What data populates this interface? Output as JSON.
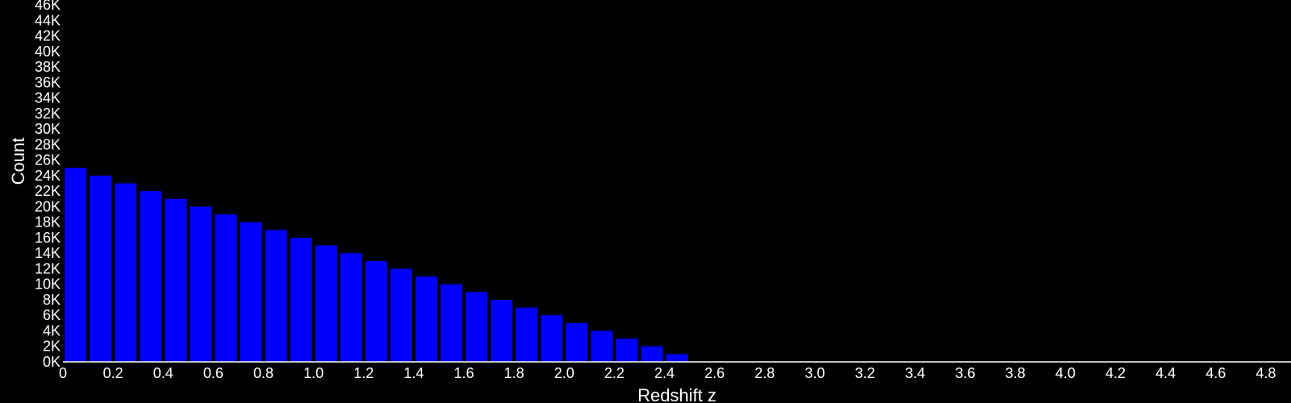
{
  "chart_data": {
    "type": "bar",
    "xlabel": "Redshift z",
    "ylabel": "Count",
    "xlim": [
      0,
      4.9
    ],
    "ylim": [
      0,
      46000
    ],
    "x_ticks": [
      "0",
      "0.2",
      "0.4",
      "0.6",
      "0.8",
      "1.0",
      "1.2",
      "1.4",
      "1.6",
      "1.8",
      "2.0",
      "2.2",
      "2.4",
      "2.6",
      "2.8",
      "3.0",
      "3.2",
      "3.4",
      "3.6",
      "3.8",
      "4.0",
      "4.2",
      "4.4",
      "4.6",
      "4.8"
    ],
    "y_ticks": [
      "0K",
      "2K",
      "4K",
      "6K",
      "8K",
      "10K",
      "12K",
      "14K",
      "16K",
      "18K",
      "20K",
      "22K",
      "24K",
      "26K",
      "28K",
      "30K",
      "32K",
      "34K",
      "36K",
      "38K",
      "40K",
      "42K",
      "44K",
      "46K"
    ],
    "bin_width": 0.1,
    "bin_starts": [
      0,
      0.1,
      0.2,
      0.3,
      0.4,
      0.5,
      0.6,
      0.7,
      0.8,
      0.9,
      1.0,
      1.1,
      1.2,
      1.3,
      1.4,
      1.5,
      1.6,
      1.7,
      1.8,
      1.9,
      2.0,
      2.1,
      2.2,
      2.3,
      2.4
    ],
    "values": [
      25000,
      24000,
      23000,
      22000,
      21000,
      20000,
      19000,
      18000,
      17000,
      16000,
      15000,
      14000,
      13000,
      12000,
      11000,
      10000,
      9000,
      8000,
      7000,
      6000,
      5000,
      4000,
      3000,
      2000,
      1000
    ],
    "bar_color": "#0000ff",
    "background": "#000000",
    "grid": false
  }
}
